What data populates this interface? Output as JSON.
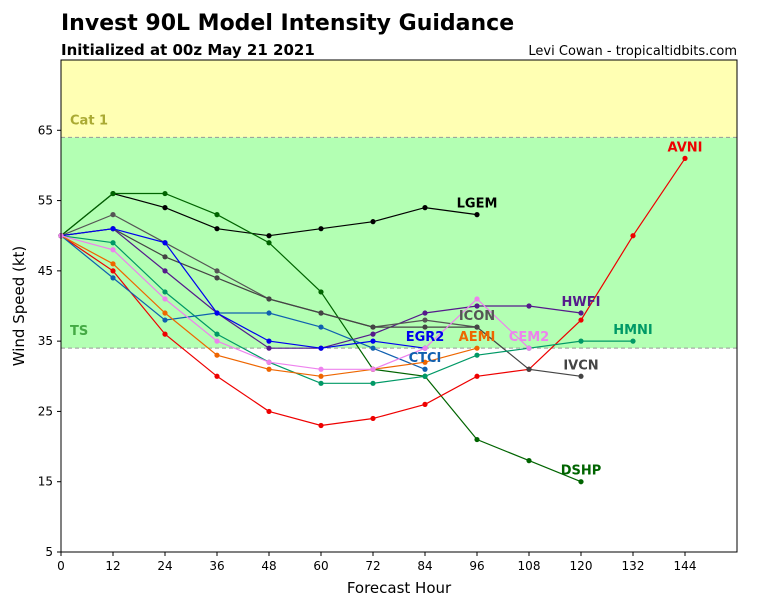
{
  "header": {
    "title": "Invest 90L Model Intensity Guidance",
    "subtitle": "Initialized at 00z May 21 2021",
    "credit": "Levi Cowan - tropicaltidbits.com"
  },
  "chart_data": {
    "type": "line",
    "xlabel": "Forecast Hour",
    "ylabel": "Wind Speed (kt)",
    "xlim": [
      0,
      156
    ],
    "ylim": [
      5,
      75
    ],
    "xticks": [
      0,
      12,
      24,
      36,
      48,
      60,
      72,
      84,
      96,
      108,
      120,
      132,
      144
    ],
    "yticks": [
      5,
      15,
      25,
      35,
      45,
      55,
      65
    ],
    "grid": false,
    "bands": [
      {
        "name": "TS",
        "from": 34,
        "to": 64,
        "color": "#b3ffb3",
        "label_color": "#44aa44"
      },
      {
        "name": "Cat 1",
        "from": 64,
        "to": 75,
        "color": "#ffffb3",
        "label_color": "#aaaa33"
      }
    ],
    "threshold_color": "#999999",
    "series": [
      {
        "name": "LGEM",
        "color": "#000000",
        "x": [
          0,
          12,
          24,
          36,
          48,
          60,
          72,
          84,
          96
        ],
        "y": [
          50,
          56,
          54,
          51,
          50,
          51,
          52,
          54,
          53
        ]
      },
      {
        "name": "DSHP",
        "color": "#006400",
        "x": [
          0,
          12,
          24,
          36,
          48,
          60,
          72,
          84,
          96,
          108,
          120
        ],
        "y": [
          50,
          56,
          56,
          53,
          49,
          42,
          31,
          30,
          21,
          18,
          15
        ]
      },
      {
        "name": "AVNI",
        "color": "#ee0000",
        "x": [
          0,
          12,
          24,
          36,
          48,
          60,
          72,
          84,
          96,
          108,
          120,
          132,
          144
        ],
        "y": [
          50,
          45,
          36,
          30,
          25,
          23,
          24,
          26,
          30,
          31,
          38,
          50,
          61
        ]
      },
      {
        "name": "HWFI",
        "color": "#551a8b",
        "x": [
          0,
          12,
          24,
          36,
          48,
          60,
          72,
          84,
          96,
          108,
          120
        ],
        "y": [
          50,
          51,
          45,
          39,
          34,
          34,
          36,
          39,
          40,
          40,
          39
        ]
      },
      {
        "name": "ICON",
        "color": "#555555",
        "x": [
          0,
          12,
          24,
          36,
          48,
          60,
          72,
          84,
          96
        ],
        "y": [
          50,
          53,
          49,
          45,
          41,
          39,
          37,
          38,
          37
        ]
      },
      {
        "name": "IVCN",
        "color": "#444444",
        "x": [
          0,
          12,
          24,
          36,
          48,
          60,
          72,
          84,
          96,
          108,
          120
        ],
        "y": [
          50,
          51,
          47,
          44,
          41,
          39,
          37,
          37,
          37,
          31,
          30
        ]
      },
      {
        "name": "HMNI",
        "color": "#009966",
        "x": [
          0,
          12,
          24,
          36,
          48,
          60,
          72,
          84,
          96,
          108,
          120,
          132
        ],
        "y": [
          50,
          49,
          42,
          36,
          32,
          29,
          29,
          30,
          33,
          34,
          35,
          35
        ]
      },
      {
        "name": "CTCI",
        "color": "#1060b0",
        "x": [
          0,
          12,
          24,
          36,
          48,
          60,
          72,
          84
        ],
        "y": [
          50,
          44,
          38,
          39,
          39,
          37,
          34,
          31
        ]
      },
      {
        "name": "EGR2",
        "color": "#0000ee",
        "x": [
          0,
          12,
          24,
          36,
          48,
          60,
          72,
          84
        ],
        "y": [
          50,
          51,
          49,
          39,
          35,
          34,
          35,
          34
        ]
      },
      {
        "name": "AEMI",
        "color": "#ee6600",
        "x": [
          0,
          12,
          24,
          36,
          48,
          60,
          72,
          84,
          96
        ],
        "y": [
          50,
          46,
          39,
          33,
          31,
          30,
          31,
          32,
          34
        ]
      },
      {
        "name": "CEM2",
        "color": "#ee82ee",
        "x": [
          0,
          12,
          24,
          36,
          48,
          60,
          72,
          84,
          96,
          108
        ],
        "y": [
          50,
          48,
          41,
          35,
          32,
          31,
          31,
          34,
          41,
          34
        ]
      }
    ],
    "annotations": [
      {
        "text": "LGEM",
        "x": 96,
        "y": 54,
        "color": "#000000"
      },
      {
        "text": "DSHP",
        "x": 120,
        "y": 16,
        "color": "#006400"
      },
      {
        "text": "AVNI",
        "x": 144,
        "y": 62,
        "color": "#ee0000"
      },
      {
        "text": "HWFI",
        "x": 120,
        "y": 40,
        "color": "#551a8b"
      },
      {
        "text": "ICON",
        "x": 96,
        "y": 38,
        "color": "#555555"
      },
      {
        "text": "IVCN",
        "x": 120,
        "y": 31,
        "color": "#444444"
      },
      {
        "text": "HMNI",
        "x": 132,
        "y": 36,
        "color": "#009966"
      },
      {
        "text": "CTCI",
        "x": 84,
        "y": 32,
        "color": "#1060b0"
      },
      {
        "text": "EGR2",
        "x": 84,
        "y": 35,
        "color": "#0000ee"
      },
      {
        "text": "AEMI",
        "x": 96,
        "y": 35,
        "color": "#ee6600"
      },
      {
        "text": "CEM2",
        "x": 108,
        "y": 35,
        "color": "#ee82ee"
      }
    ]
  }
}
